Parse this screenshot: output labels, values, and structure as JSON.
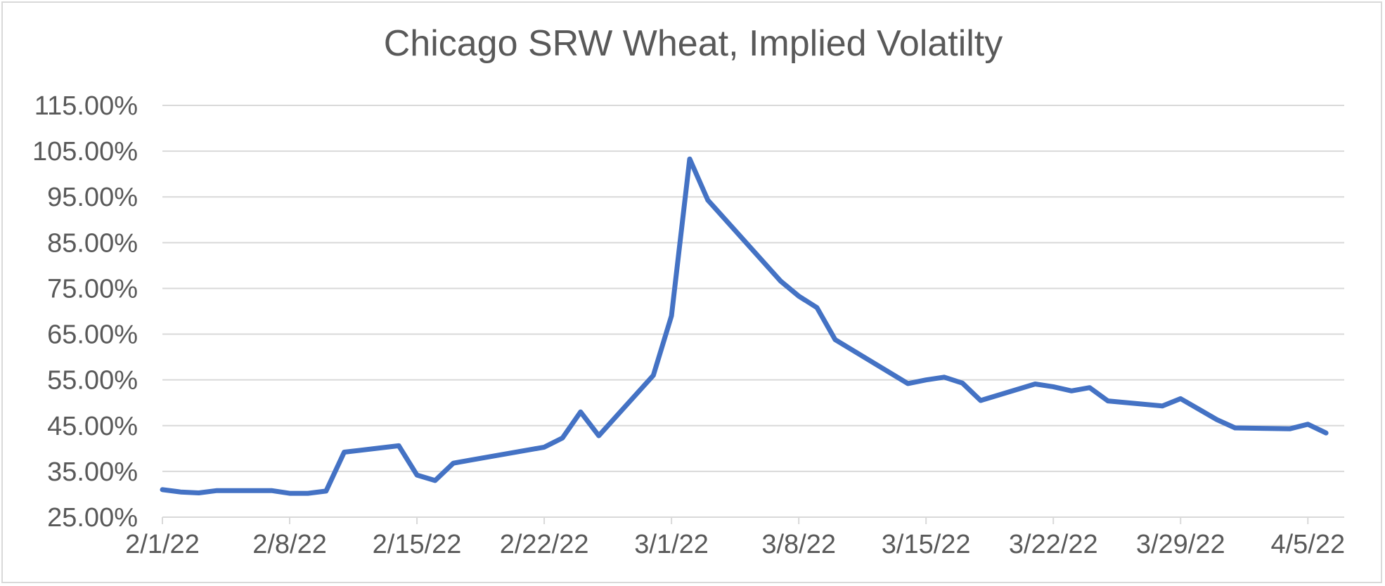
{
  "chart_data": {
    "type": "line",
    "title": "Chicago SRW Wheat, Implied Volatilty",
    "xlabel": "",
    "ylabel": "",
    "x_tick_labels": [
      "2/1/22",
      "2/8/22",
      "2/15/22",
      "2/22/22",
      "3/1/22",
      "3/8/22",
      "3/15/22",
      "3/22/22",
      "3/29/22",
      "4/5/22"
    ],
    "y_tick_labels": [
      "25.00%",
      "35.00%",
      "45.00%",
      "55.00%",
      "65.00%",
      "75.00%",
      "85.00%",
      "95.00%",
      "105.00%",
      "115.00%"
    ],
    "ylim": [
      25,
      115
    ],
    "xlim": [
      "2022-02-01",
      "2022-04-07"
    ],
    "grid": "horizontal",
    "legend": "none",
    "line_color": "#4472c4",
    "gridline_color": "#d9d9d9",
    "series": [
      {
        "points": [
          [
            "2022-02-01",
            31.0
          ],
          [
            "2022-02-02",
            30.5
          ],
          [
            "2022-02-03",
            30.3
          ],
          [
            "2022-02-04",
            30.8
          ],
          [
            "2022-02-07",
            30.8
          ],
          [
            "2022-02-08",
            30.2
          ],
          [
            "2022-02-09",
            30.2
          ],
          [
            "2022-02-10",
            30.7
          ],
          [
            "2022-02-11",
            39.2
          ],
          [
            "2022-02-14",
            40.6
          ],
          [
            "2022-02-15",
            34.2
          ],
          [
            "2022-02-16",
            33.0
          ],
          [
            "2022-02-17",
            36.8
          ],
          [
            "2022-02-18",
            37.5
          ],
          [
            "2022-02-22",
            40.3
          ],
          [
            "2022-02-23",
            42.3
          ],
          [
            "2022-02-24",
            48.0
          ],
          [
            "2022-02-25",
            42.8
          ],
          [
            "2022-02-28",
            56.0
          ],
          [
            "2022-03-01",
            69.0
          ],
          [
            "2022-03-02",
            103.3
          ],
          [
            "2022-03-03",
            94.3
          ],
          [
            "2022-03-07",
            76.6
          ],
          [
            "2022-03-08",
            73.3
          ],
          [
            "2022-03-09",
            70.8
          ],
          [
            "2022-03-10",
            63.8
          ],
          [
            "2022-03-14",
            54.2
          ],
          [
            "2022-03-15",
            55.0
          ],
          [
            "2022-03-16",
            55.6
          ],
          [
            "2022-03-17",
            54.3
          ],
          [
            "2022-03-18",
            50.5
          ],
          [
            "2022-03-21",
            54.1
          ],
          [
            "2022-03-22",
            53.5
          ],
          [
            "2022-03-23",
            52.6
          ],
          [
            "2022-03-24",
            53.3
          ],
          [
            "2022-03-25",
            50.4
          ],
          [
            "2022-03-28",
            49.3
          ],
          [
            "2022-03-29",
            50.9
          ],
          [
            "2022-03-30",
            48.6
          ],
          [
            "2022-03-31",
            46.3
          ],
          [
            "2022-04-01",
            44.5
          ],
          [
            "2022-04-04",
            44.3
          ],
          [
            "2022-04-05",
            45.3
          ],
          [
            "2022-04-06",
            43.4
          ]
        ]
      }
    ]
  }
}
